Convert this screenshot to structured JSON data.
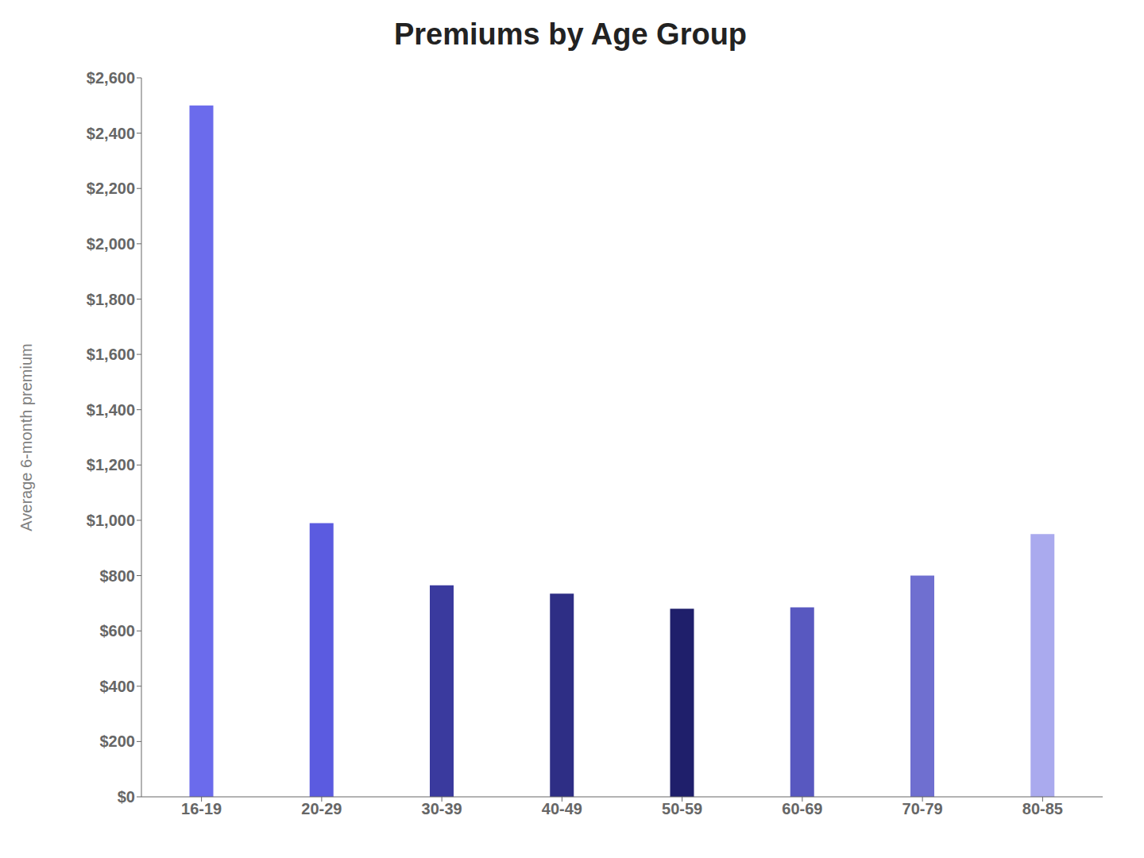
{
  "chart_data": {
    "type": "bar",
    "title": "Premiums by Age Group",
    "ylabel": "Average 6-month premium",
    "categories": [
      "16-19",
      "20-29",
      "30-39",
      "40-49",
      "50-59",
      "60-69",
      "70-79",
      "80-85"
    ],
    "values": [
      2500,
      990,
      765,
      735,
      680,
      685,
      800,
      950
    ],
    "colors": [
      "#6b6bec",
      "#5b5be0",
      "#3a3a9e",
      "#2e2e85",
      "#1f1f6b",
      "#5858c0",
      "#6f6fd0",
      "#aaaaee"
    ],
    "ylim": [
      0,
      2600
    ],
    "yticks": [
      {
        "value": 0,
        "label": "$0"
      },
      {
        "value": 200,
        "label": "$200"
      },
      {
        "value": 400,
        "label": "$400"
      },
      {
        "value": 600,
        "label": "$600"
      },
      {
        "value": 800,
        "label": "$800"
      },
      {
        "value": 1000,
        "label": "$1,000"
      },
      {
        "value": 1200,
        "label": "$1,200"
      },
      {
        "value": 1400,
        "label": "$1,400"
      },
      {
        "value": 1600,
        "label": "$1,600"
      },
      {
        "value": 1800,
        "label": "$1,800"
      },
      {
        "value": 2000,
        "label": "$2,000"
      },
      {
        "value": 2200,
        "label": "$2,200"
      },
      {
        "value": 2400,
        "label": "$2,400"
      },
      {
        "value": 2600,
        "label": "$2,600"
      }
    ],
    "grid": false
  }
}
